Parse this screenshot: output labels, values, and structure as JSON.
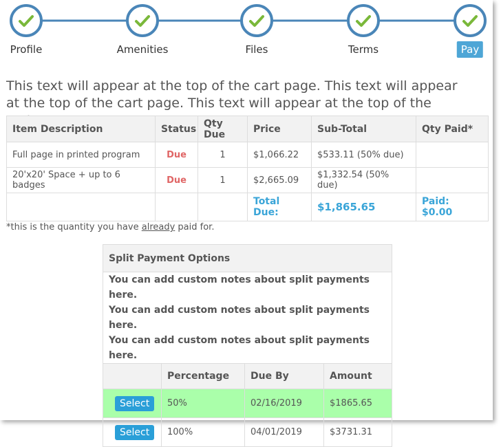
{
  "steps": [
    {
      "label": "Profile"
    },
    {
      "label": "Amenities"
    },
    {
      "label": "Files"
    },
    {
      "label": "Terms"
    },
    {
      "label": "Pay"
    }
  ],
  "intro": "This text will appear at the top of the cart page. This text will appear at the top of the cart page. This text will appear at the top of the cart page.",
  "cart_table": {
    "headers": [
      "Item Description",
      "Status",
      "Qty Due",
      "Price",
      "Sub-Total",
      "Qty Paid*"
    ],
    "rows": [
      [
        "Full page in printed program",
        "Due",
        "1",
        "$1,066.22",
        "$533.11 (50% due)"
      ],
      [
        "20'x20' Space + up to 6 badges",
        "Due",
        "1",
        "$2,665.09",
        "$1,332.54 (50% due)"
      ]
    ],
    "total_label": "Total Due:",
    "total_value": "$1,865.65",
    "paid": "Paid: $0.00"
  },
  "footnote": {
    "before": "*this is the quantity you have",
    "link": "already",
    "after": "paid for."
  },
  "split_table": {
    "title": "Split Payment Options",
    "notes": [
      "You can add custom notes about split payments here.",
      "You can add custom notes about split payments here.",
      "You can add custom notes about split payments here."
    ],
    "headers": [
      "Percentage",
      "Due By",
      "Amount"
    ],
    "rows": [
      {
        "button": "Select",
        "cells": [
          "50%",
          "02/16/2019",
          "$1865.65"
        ]
      },
      {
        "button": "Select",
        "cells": [
          "100%",
          "04/01/2019",
          "$3731.31"
        ]
      }
    ]
  }
}
